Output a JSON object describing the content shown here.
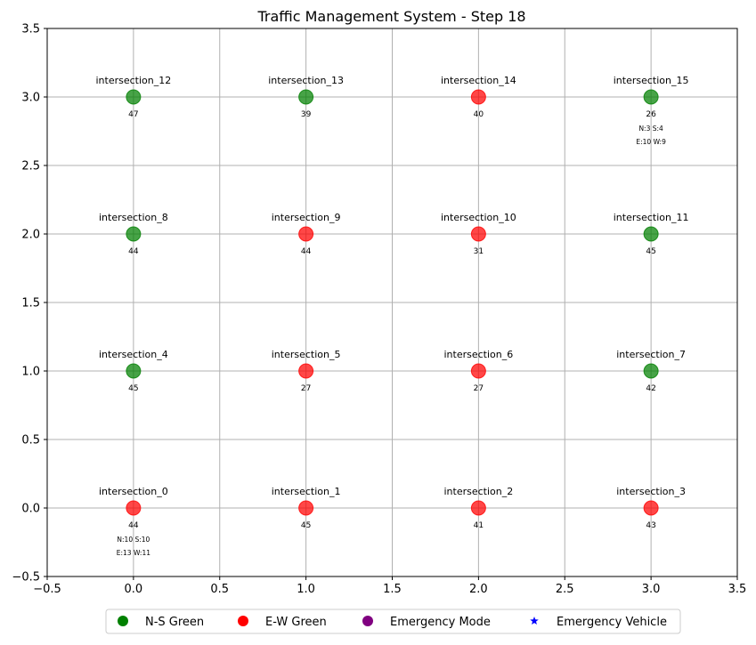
{
  "chart_data": {
    "type": "scatter",
    "title": "Traffic Management System - Step 18",
    "xlabel": "",
    "ylabel": "",
    "xlim": [
      -0.5,
      3.5
    ],
    "ylim": [
      -0.5,
      3.5
    ],
    "xticks": [
      "−0.5",
      "0.0",
      "0.5",
      "1.0",
      "1.5",
      "2.0",
      "2.5",
      "3.0",
      "3.5"
    ],
    "yticks": [
      "−0.5",
      "0.0",
      "0.5",
      "1.0",
      "1.5",
      "2.0",
      "2.5",
      "3.0",
      "3.5"
    ],
    "grid": true,
    "legend_position": "bottom-center",
    "legend": [
      {
        "label": "N-S Green",
        "color": "#008000",
        "marker": "circle"
      },
      {
        "label": "E-W Green",
        "color": "#ff0000",
        "marker": "circle"
      },
      {
        "label": "Emergency Mode",
        "color": "#800080",
        "marker": "circle"
      },
      {
        "label": "Emergency Vehicle",
        "color": "#0000ff",
        "marker": "star"
      }
    ],
    "points": [
      {
        "name": "intersection_0",
        "x": 0,
        "y": 0,
        "state": "EW",
        "value": "44",
        "queues": [
          "N:10 S:10",
          "E:13 W:11"
        ]
      },
      {
        "name": "intersection_1",
        "x": 1,
        "y": 0,
        "state": "EW",
        "value": "45"
      },
      {
        "name": "intersection_2",
        "x": 2,
        "y": 0,
        "state": "EW",
        "value": "41"
      },
      {
        "name": "intersection_3",
        "x": 3,
        "y": 0,
        "state": "EW",
        "value": "43"
      },
      {
        "name": "intersection_4",
        "x": 0,
        "y": 1,
        "state": "NS",
        "value": "45"
      },
      {
        "name": "intersection_5",
        "x": 1,
        "y": 1,
        "state": "EW",
        "value": "27"
      },
      {
        "name": "intersection_6",
        "x": 2,
        "y": 1,
        "state": "EW",
        "value": "27"
      },
      {
        "name": "intersection_7",
        "x": 3,
        "y": 1,
        "state": "NS",
        "value": "42"
      },
      {
        "name": "intersection_8",
        "x": 0,
        "y": 2,
        "state": "NS",
        "value": "44"
      },
      {
        "name": "intersection_9",
        "x": 1,
        "y": 2,
        "state": "EW",
        "value": "44"
      },
      {
        "name": "intersection_10",
        "x": 2,
        "y": 2,
        "state": "EW",
        "value": "31"
      },
      {
        "name": "intersection_11",
        "x": 3,
        "y": 2,
        "state": "NS",
        "value": "45"
      },
      {
        "name": "intersection_12",
        "x": 0,
        "y": 3,
        "state": "NS",
        "value": "47"
      },
      {
        "name": "intersection_13",
        "x": 1,
        "y": 3,
        "state": "NS",
        "value": "39"
      },
      {
        "name": "intersection_14",
        "x": 2,
        "y": 3,
        "state": "EW",
        "value": "40"
      },
      {
        "name": "intersection_15",
        "x": 3,
        "y": 3,
        "state": "NS",
        "value": "26",
        "queues": [
          "N:3 S:4",
          "E:10 W:9"
        ]
      }
    ],
    "colors": {
      "NS": "#008000",
      "EW": "#ff0000",
      "grid": "#b0b0b0",
      "axis": "#000000"
    }
  }
}
